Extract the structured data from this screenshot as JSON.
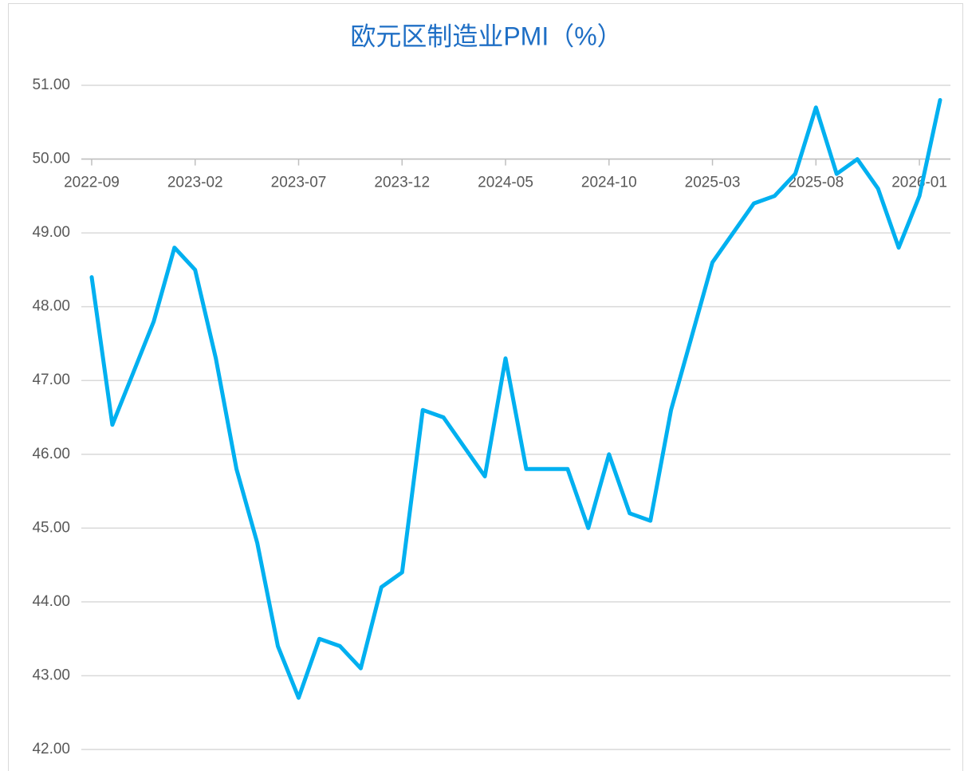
{
  "chart_data": {
    "type": "line",
    "title": "欧元区制造业PMI（%）",
    "categories": [
      "2022-09",
      null,
      null,
      null,
      null,
      "2023-02",
      null,
      null,
      null,
      null,
      "2023-07",
      null,
      null,
      null,
      null,
      "2023-12",
      null,
      null,
      null,
      null,
      "2024-05",
      null,
      null,
      null,
      null,
      "2024-10",
      null,
      null,
      null,
      null,
      "2025-03",
      null,
      null,
      null,
      null,
      "2025-08",
      null,
      null,
      null,
      null,
      "2026-01",
      null
    ],
    "series": [
      {
        "name": "欧元区制造业PMI",
        "color": "#00b0f0",
        "values": [
          48.4,
          46.4,
          47.1,
          47.8,
          48.8,
          48.5,
          47.3,
          45.8,
          44.8,
          43.4,
          42.7,
          43.5,
          43.4,
          43.1,
          44.2,
          44.4,
          46.6,
          46.5,
          46.1,
          45.7,
          47.3,
          45.8,
          45.8,
          45.8,
          45.0,
          46.0,
          45.2,
          45.1,
          46.6,
          47.6,
          48.6,
          49.0,
          49.4,
          49.5,
          49.8,
          50.7,
          49.8,
          50.0,
          49.6,
          48.8,
          49.5,
          50.8
        ]
      }
    ],
    "ylim": [
      42,
      51
    ],
    "yticks": [
      {
        "value": 42,
        "label": "42.00"
      },
      {
        "value": 43,
        "label": "43.00"
      },
      {
        "value": 44,
        "label": "44.00"
      },
      {
        "value": 45,
        "label": "45.00"
      },
      {
        "value": 46,
        "label": "46.00"
      },
      {
        "value": 47,
        "label": "47.00"
      },
      {
        "value": 48,
        "label": "48.00"
      },
      {
        "value": 49,
        "label": "49.00"
      },
      {
        "value": 50,
        "label": "50.00"
      },
      {
        "value": 51,
        "label": "51.00"
      }
    ],
    "x_axis_crossing": 50,
    "grid": true
  }
}
